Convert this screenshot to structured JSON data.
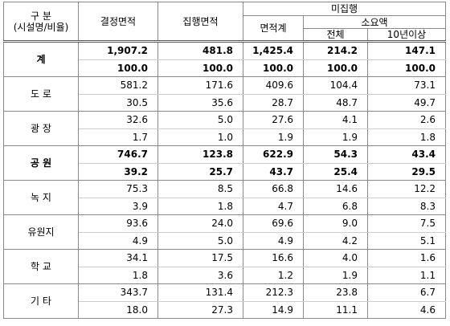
{
  "header": {
    "category": "구 분",
    "category_sub": "(시설명/비율)",
    "decided_area": "결정면적",
    "executed_area": "집행면적",
    "unexecuted": "미집행",
    "area_total": "면적계",
    "required_cost": "소요액",
    "cost_total": "전체",
    "cost_10y": "10년이상"
  },
  "rows": [
    {
      "name": "계",
      "bold": true,
      "area": [
        "1,907.2",
        "481.8",
        "1,425.4",
        "214.2",
        "147.1"
      ],
      "ratio": [
        "100.0",
        "100.0",
        "100.0",
        "100.0",
        "100.0"
      ]
    },
    {
      "name": "도 로",
      "bold": false,
      "area": [
        "581.2",
        "171.6",
        "409.6",
        "104.4",
        "73.1"
      ],
      "ratio": [
        "30.5",
        "35.6",
        "28.7",
        "48.7",
        "49.7"
      ]
    },
    {
      "name": "광 장",
      "bold": false,
      "area": [
        "32.6",
        "5.0",
        "27.6",
        "4.1",
        "2.6"
      ],
      "ratio": [
        "1.7",
        "1.0",
        "1.9",
        "1.9",
        "1.8"
      ]
    },
    {
      "name": "공 원",
      "bold": true,
      "area": [
        "746.7",
        "123.8",
        "622.9",
        "54.3",
        "43.4"
      ],
      "ratio": [
        "39.2",
        "25.7",
        "43.7",
        "25.4",
        "29.5"
      ]
    },
    {
      "name": "녹 지",
      "bold": false,
      "area": [
        "75.3",
        "8.5",
        "66.8",
        "14.6",
        "12.2"
      ],
      "ratio": [
        "3.9",
        "1.8",
        "4.7",
        "6.8",
        "8.3"
      ]
    },
    {
      "name": "유원지",
      "bold": false,
      "area": [
        "93.6",
        "24.0",
        "69.6",
        "9.0",
        "7.5"
      ],
      "ratio": [
        "4.9",
        "5.0",
        "4.9",
        "4.2",
        "5.1"
      ]
    },
    {
      "name": "학 교",
      "bold": false,
      "area": [
        "34.1",
        "17.5",
        "16.6",
        "4.0",
        "1.6"
      ],
      "ratio": [
        "1.8",
        "3.6",
        "1.2",
        "1.9",
        "1.1"
      ]
    },
    {
      "name": "기 타",
      "bold": false,
      "area": [
        "343.7",
        "131.4",
        "212.3",
        "23.8",
        "6.7"
      ],
      "ratio": [
        "18.0",
        "27.3",
        "14.9",
        "11.1",
        "4.6"
      ]
    }
  ]
}
